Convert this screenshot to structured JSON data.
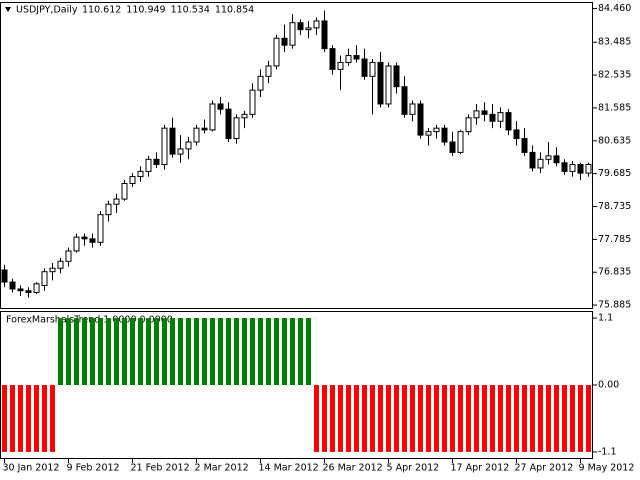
{
  "chart_data": [
    {
      "type": "candlestick",
      "title": "USDJPY,Daily",
      "header_values": [
        110.612,
        110.949,
        110.534,
        110.854
      ],
      "up_color": "#ffffff",
      "down_color": "#000000",
      "outline_color": "#000000",
      "categories": [
        "30 Jan 2012",
        null,
        null,
        null,
        null,
        null,
        null,
        null,
        "9 Feb 2012",
        null,
        null,
        null,
        null,
        null,
        null,
        null,
        "21 Feb 2012",
        null,
        null,
        null,
        null,
        null,
        null,
        null,
        "2 Mar 2012",
        null,
        null,
        null,
        null,
        null,
        null,
        null,
        "14 Mar 2012",
        null,
        null,
        null,
        null,
        null,
        null,
        null,
        "26 Mar 2012",
        null,
        null,
        null,
        null,
        null,
        null,
        null,
        "5 Apr 2012",
        null,
        null,
        null,
        null,
        null,
        null,
        null,
        "17 Apr 2012",
        null,
        null,
        null,
        null,
        null,
        null,
        null,
        "27 Apr 2012",
        null,
        null,
        null,
        null,
        null,
        null,
        null,
        "9 May 2012",
        null
      ],
      "open": [
        76.9,
        76.55,
        76.35,
        76.3,
        76.25,
        76.45,
        76.85,
        76.95,
        77.15,
        77.45,
        77.85,
        77.8,
        77.7,
        78.5,
        78.8,
        78.95,
        79.4,
        79.6,
        79.75,
        80.1,
        79.95,
        81.0,
        80.25,
        80.4,
        80.6,
        81.0,
        80.95,
        81.7,
        81.55,
        80.7,
        81.3,
        81.4,
        82.1,
        82.5,
        82.8,
        83.6,
        83.4,
        84.05,
        83.85,
        83.9,
        84.1,
        83.3,
        82.7,
        82.9,
        83.1,
        83.0,
        82.5,
        82.9,
        81.7,
        82.8,
        82.2,
        81.4,
        81.7,
        80.8,
        80.9,
        81.0,
        80.6,
        80.3,
        80.9,
        81.3,
        81.5,
        81.4,
        81.2,
        81.45,
        80.95,
        80.7,
        80.3,
        79.85,
        80.1,
        80.2,
        80.0,
        79.75,
        79.95,
        79.7
      ],
      "high": [
        77.05,
        76.65,
        76.45,
        76.4,
        76.55,
        76.95,
        77.1,
        77.25,
        77.55,
        77.95,
        77.95,
        77.95,
        78.6,
        78.9,
        79.1,
        79.5,
        79.7,
        79.9,
        80.2,
        80.3,
        81.1,
        81.3,
        80.8,
        80.75,
        81.1,
        81.25,
        81.8,
        81.9,
        81.75,
        81.4,
        81.5,
        82.3,
        82.7,
        82.95,
        83.7,
        84.0,
        84.3,
        84.15,
        84.1,
        84.2,
        84.4,
        83.4,
        83.1,
        83.3,
        83.4,
        83.3,
        83.0,
        83.2,
        82.9,
        82.9,
        82.5,
        81.8,
        81.8,
        81.0,
        81.1,
        81.1,
        80.9,
        80.95,
        81.4,
        81.7,
        81.75,
        81.7,
        81.6,
        81.55,
        81.2,
        81.0,
        80.5,
        80.3,
        80.6,
        80.45,
        80.1,
        80.05,
        80.0,
        80.0
      ],
      "low": [
        76.4,
        76.25,
        76.15,
        76.1,
        76.2,
        76.3,
        76.6,
        76.8,
        77.0,
        77.4,
        77.6,
        77.55,
        77.6,
        78.3,
        78.55,
        78.9,
        79.3,
        79.45,
        79.6,
        79.85,
        79.8,
        80.15,
        80.0,
        80.1,
        80.5,
        80.85,
        80.9,
        81.4,
        80.6,
        80.55,
        81.0,
        81.3,
        81.9,
        82.3,
        82.7,
        83.2,
        83.3,
        83.7,
        83.6,
        83.7,
        83.2,
        82.55,
        82.1,
        82.8,
        82.9,
        82.4,
        81.4,
        81.6,
        81.6,
        82.0,
        81.3,
        81.2,
        80.7,
        80.5,
        80.7,
        80.5,
        80.2,
        80.25,
        80.8,
        81.1,
        81.2,
        81.0,
        81.0,
        80.8,
        80.5,
        80.2,
        79.75,
        79.7,
        79.95,
        79.9,
        79.65,
        79.6,
        79.5,
        79.6
      ],
      "close": [
        76.55,
        76.35,
        76.3,
        76.25,
        76.5,
        76.85,
        76.95,
        77.15,
        77.45,
        77.85,
        77.8,
        77.7,
        78.5,
        78.8,
        78.95,
        79.4,
        79.6,
        79.75,
        80.1,
        79.95,
        81.0,
        80.25,
        80.4,
        80.6,
        81.0,
        80.95,
        81.7,
        81.55,
        80.7,
        81.3,
        81.4,
        82.1,
        82.5,
        82.8,
        83.6,
        83.4,
        84.05,
        83.85,
        83.9,
        84.1,
        83.3,
        82.7,
        82.9,
        83.1,
        83.0,
        82.5,
        82.9,
        81.7,
        82.8,
        82.2,
        81.4,
        81.7,
        80.8,
        80.9,
        81.0,
        80.6,
        80.3,
        80.9,
        81.3,
        81.5,
        81.4,
        81.2,
        81.45,
        80.95,
        80.7,
        80.3,
        79.85,
        80.1,
        80.2,
        80.0,
        79.75,
        79.95,
        79.7,
        79.95
      ],
      "ylim": [
        75.8,
        84.62
      ],
      "yticks": [
        {
          "value": 84.46,
          "label": "84.460"
        },
        {
          "value": 83.485,
          "label": "83.485"
        },
        {
          "value": 82.535,
          "label": "82.535"
        },
        {
          "value": 81.585,
          "label": "81.585"
        },
        {
          "value": 80.635,
          "label": "80.635"
        },
        {
          "value": 79.685,
          "label": "79.685"
        },
        {
          "value": 78.735,
          "label": "78.735"
        },
        {
          "value": 77.785,
          "label": "77.785"
        },
        {
          "value": 76.835,
          "label": "76.835"
        },
        {
          "value": 75.885,
          "label": "75.885"
        }
      ]
    },
    {
      "type": "bar",
      "title": "ForexMarshalsTrend 1.0000 0.0000",
      "up_color": "#008000",
      "down_color": "#ff0000",
      "values": [
        -1.1,
        -1.1,
        -1.1,
        -1.1,
        -1.1,
        -1.1,
        -1.1,
        1.1,
        1.1,
        1.1,
        1.1,
        1.1,
        1.1,
        1.1,
        1.1,
        1.1,
        1.1,
        1.1,
        1.1,
        1.1,
        1.1,
        1.1,
        1.1,
        1.1,
        1.1,
        1.1,
        1.1,
        1.1,
        1.1,
        1.1,
        1.1,
        1.1,
        1.1,
        1.1,
        1.1,
        1.1,
        1.1,
        1.1,
        1.1,
        -1.1,
        -1.1,
        -1.1,
        -1.1,
        -1.1,
        -1.1,
        -1.1,
        -1.1,
        -1.1,
        -1.1,
        -1.1,
        -1.1,
        -1.1,
        -1.1,
        -1.1,
        -1.1,
        -1.1,
        -1.1,
        -1.1,
        -1.1,
        -1.1,
        -1.1,
        -1.1,
        -1.1,
        -1.1,
        -1.1,
        -1.1,
        -1.1,
        -1.1,
        -1.1,
        -1.1,
        -1.1,
        -1.1,
        -1.1,
        -1.1
      ],
      "ylim": [
        -1.2,
        1.2
      ],
      "yticks": [
        1.1,
        {
          "value": 0,
          "label": "0.00"
        },
        -1.1
      ]
    }
  ]
}
